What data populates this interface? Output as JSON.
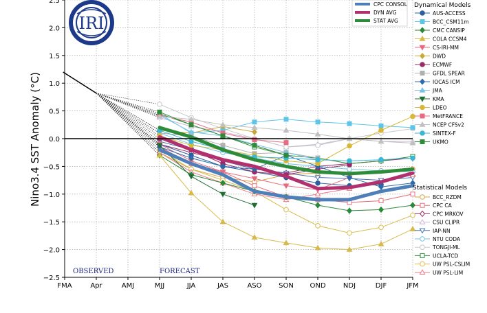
{
  "chart_data": {
    "type": "line",
    "title": "",
    "ylabel": "Nino3.4 SST Anomaly (°C)",
    "xlabel": "",
    "categories": [
      "FMA",
      "Apr",
      "AMJ",
      "MJJ",
      "JJA",
      "JAS",
      "ASO",
      "SON",
      "OND",
      "NDJ",
      "DJF",
      "JFM"
    ],
    "ylim": [
      -2.5,
      2.5
    ],
    "yticks": [
      "−2.5",
      "−2.0",
      "−1.5",
      "−1.0",
      "−0.5",
      "0.0",
      "0.5",
      "1.0",
      "1.5",
      "2.0",
      "2.5"
    ],
    "grid": true,
    "annotations": {
      "observed": "OBSERVED",
      "forecast": "FORECAST",
      "logo": "IRI"
    },
    "observed": {
      "x": [
        -0.05,
        1
      ],
      "values": [
        1.2,
        0.82
      ]
    },
    "legend_top": [
      {
        "name": "CPC CONSOL",
        "color": "#4f7fb8"
      },
      {
        "name": "DYN AVG",
        "color": "#b2306e"
      },
      {
        "name": "STAT AVG",
        "color": "#2e8b3a"
      }
    ],
    "dynamical_title": "Dynamical Models",
    "statistical_title": "Statistical Models",
    "dynamical_models": [
      {
        "name": "AUS-ACCESS",
        "color": "#2b5f9e",
        "marker": "circle",
        "values": [
          -0.1,
          -0.3,
          -0.5,
          -0.6,
          -0.7,
          -0.8,
          -0.85,
          -0.83
        ]
      },
      {
        "name": "BCC_CSM11m",
        "color": "#5ec5e8",
        "marker": "square",
        "values": [
          0.45,
          0.1,
          0.15,
          0.3,
          0.35,
          0.3,
          0.27,
          0.23,
          0.2
        ]
      },
      {
        "name": "CMC CANSIP",
        "color": "#2a8a3a",
        "marker": "diamond",
        "values": [
          -0.3,
          -0.65,
          -0.8,
          -0.95,
          -1.05,
          -1.2,
          -1.3,
          -1.28,
          -1.2
        ]
      },
      {
        "name": "COLA CCSM4",
        "color": "#d6b94a",
        "marker": "triangle-up",
        "values": [
          -0.3,
          -0.98,
          -1.5,
          -1.78,
          -1.88,
          -1.97,
          -2.0,
          -1.9,
          -1.63
        ]
      },
      {
        "name": "CS-IRI-MM",
        "color": "#e76b7f",
        "marker": "triangle-down",
        "values": [
          -0.1,
          -0.4,
          -0.6,
          -0.72,
          -0.85,
          -0.92,
          -0.7
        ]
      },
      {
        "name": "DWD",
        "color": "#c9a83a",
        "marker": "diamond",
        "values": [
          0.15,
          0.1,
          0.22,
          0.12
        ]
      },
      {
        "name": "ECMWF",
        "color": "#9b2a66",
        "marker": "circle",
        "values": [
          0.0,
          -0.2,
          -0.45,
          -0.6,
          -0.65,
          -0.55,
          -0.47
        ]
      },
      {
        "name": "GFDL SPEAR",
        "color": "#b0b0b0",
        "marker": "square",
        "values": [
          0.1,
          0.05,
          -0.12,
          -0.27,
          -0.25,
          -0.35
        ]
      },
      {
        "name": "IOCAS ICM",
        "color": "#2e6aa8",
        "marker": "diamond",
        "values": [
          -0.15,
          -0.35,
          -0.5,
          -0.55,
          -0.3,
          -0.5,
          -0.7,
          -0.87,
          -0.8
        ]
      },
      {
        "name": "JMA",
        "color": "#7cc3ea",
        "marker": "triangle-up",
        "values": [
          0.42,
          0.12,
          0.05,
          -0.1,
          -0.25,
          -0.38
        ]
      },
      {
        "name": "KMA",
        "color": "#1f6f34",
        "marker": "triangle-down",
        "values": [
          -0.12,
          -0.68,
          -1.0,
          -1.2
        ]
      },
      {
        "name": "LDEO",
        "color": "#d8b838",
        "marker": "circle",
        "values": [
          0.05,
          -0.12,
          -0.2,
          -0.3,
          -0.4,
          -0.45,
          -0.13,
          0.15,
          0.4
        ]
      },
      {
        "name": "MetFRANCE",
        "color": "#e96a80",
        "marker": "square",
        "values": [
          0.42,
          0.3,
          0.1,
          -0.02,
          -0.07
        ]
      },
      {
        "name": "NCEP CFSv2",
        "color": "#c0c0c0",
        "marker": "triangle-up",
        "values": [
          0.4,
          0.35,
          0.25,
          0.2,
          0.15,
          0.08,
          0.0,
          -0.05,
          -0.08
        ]
      },
      {
        "name": "SINTEX-F",
        "color": "#3bb7d6",
        "marker": "circle",
        "values": [
          0.15,
          -0.05,
          -0.2,
          -0.33,
          -0.35,
          -0.38,
          -0.4,
          -0.38,
          -0.35
        ]
      },
      {
        "name": "UKMO",
        "color": "#2e8b3a",
        "marker": "square",
        "values": [
          0.48,
          0.25,
          0.05,
          -0.12,
          -0.3
        ]
      }
    ],
    "statistical_models": [
      {
        "name": "BCC_RZDM",
        "color": "#d6a340",
        "marker": "circle",
        "values": [
          -0.25,
          -0.55,
          -0.7,
          -0.78,
          -0.65,
          -0.62,
          -0.62,
          -0.58,
          -0.55
        ]
      },
      {
        "name": "CPC CA",
        "color": "#e56c78",
        "marker": "square",
        "values": [
          -0.15,
          -0.45,
          -0.6,
          -0.85,
          -1.05,
          -1.1,
          -1.15,
          -1.12,
          -1.0
        ]
      },
      {
        "name": "CPC MRKOV",
        "color": "#9b2a66",
        "marker": "diamond",
        "values": [
          -0.1,
          -0.25,
          -0.4,
          -0.55,
          -0.62,
          -0.5,
          -0.45,
          -0.4,
          -0.35
        ]
      },
      {
        "name": "CSU CLIPR",
        "color": "#c9b8d6",
        "marker": "triangle-up",
        "values": [
          0.38,
          0.22,
          0.12,
          0.0,
          -0.15,
          -0.1,
          0.0,
          -0.05,
          -0.05
        ]
      },
      {
        "name": "IAP-NN",
        "color": "#4670b4",
        "marker": "triangle-down",
        "values": [
          -0.05,
          -0.2,
          -0.4,
          -0.55,
          -0.62,
          -0.7,
          -0.72,
          -0.75,
          -0.7
        ]
      },
      {
        "name": "NTU CODA",
        "color": "#6ec2e8",
        "marker": "circle",
        "values": [
          0.1,
          -0.1,
          -0.25,
          -0.35,
          -0.45,
          -0.5,
          -0.55,
          -0.58,
          -0.6
        ]
      },
      {
        "name": "TONGJI-ML",
        "color": "#c8c8c8",
        "marker": "circle",
        "values": [
          0.62,
          0.38,
          0.18,
          0.0,
          -0.15,
          -0.12,
          0.0,
          0.1,
          0.18
        ]
      },
      {
        "name": "UCLA-TCD",
        "color": "#2e8b3a",
        "marker": "square",
        "values": [
          0.45,
          0.25,
          0.05,
          -0.15,
          -0.3,
          -0.35,
          -0.45,
          -0.4,
          -0.32
        ]
      },
      {
        "name": "UW PSL-CSLIM",
        "color": "#d9bd4a",
        "marker": "circle",
        "values": [
          -0.2,
          -0.55,
          -0.75,
          -0.95,
          -1.28,
          -1.57,
          -1.7,
          -1.6,
          -1.38
        ]
      },
      {
        "name": "UW PSL-LIM",
        "color": "#e97c8a",
        "marker": "triangle-up",
        "values": [
          -0.25,
          -0.6,
          -0.8,
          -1.0,
          -1.1,
          -1.0,
          -0.9,
          -0.8,
          -0.65
        ]
      }
    ],
    "averages": [
      {
        "name": "CPC CONSOL",
        "color": "#4f7fb8",
        "values": [
          -0.2,
          -0.45,
          -0.65,
          -0.95,
          -1.05,
          -1.1,
          -1.1,
          -0.95,
          -0.85
        ]
      },
      {
        "name": "STAT AVG",
        "color": "#2e8b3a",
        "values": [
          0.2,
          0.03,
          -0.2,
          -0.38,
          -0.5,
          -0.6,
          -0.63,
          -0.6,
          -0.55
        ]
      },
      {
        "name": "DYN AVG",
        "color": "#b2306e",
        "values": [
          0.03,
          -0.2,
          -0.38,
          -0.5,
          -0.68,
          -0.9,
          -0.88,
          -0.78,
          -0.62
        ]
      }
    ]
  }
}
